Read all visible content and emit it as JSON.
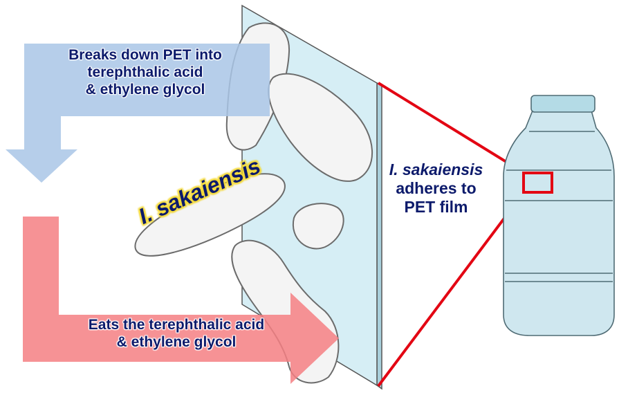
{
  "labels": {
    "breaks_down": [
      "Breaks down PET into",
      "terephthalic acid",
      "& ethylene glycol"
    ],
    "eats": [
      "Eats the terephthalic acid",
      "& ethylene glycol"
    ],
    "organism": "I. sakaiensis",
    "adheres": {
      "line1": "I. sakaiensis",
      "line2": "adheres to",
      "line3": "PET film"
    }
  },
  "colors": {
    "arrow_blue": "#a9c6e6",
    "arrow_red": "#f47f82",
    "film": "#d6eef5",
    "zoom_lines": "#e30613",
    "text": "#0c1a6b",
    "label_glow": "#f2d428",
    "bottle": "#cfe7ef",
    "bottle_cap": "#b4dbe6"
  },
  "icons": {
    "bacteria": "bacterium-cell-icon",
    "bottle": "plastic-bottle-icon"
  }
}
